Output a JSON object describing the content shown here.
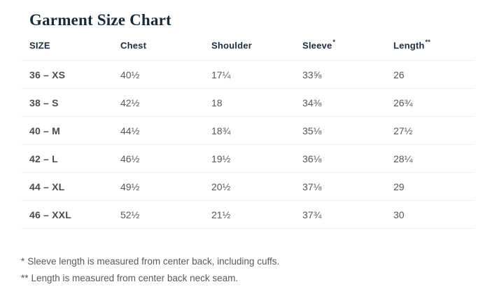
{
  "page": {
    "title": "Garment Size Chart"
  },
  "table": {
    "columns": [
      {
        "label": "SIZE",
        "sup": ""
      },
      {
        "label": "Chest",
        "sup": ""
      },
      {
        "label": "Shoulder",
        "sup": ""
      },
      {
        "label": "Sleeve",
        "sup": "*"
      },
      {
        "label": "Length",
        "sup": "**"
      }
    ],
    "rows": [
      {
        "size": "36 – XS",
        "chest": "40½",
        "shoulder": "17¼",
        "sleeve": "33⅝",
        "length": "26"
      },
      {
        "size": "38 – S",
        "chest": "42½",
        "shoulder": "18",
        "sleeve": "34⅜",
        "length": "26¾"
      },
      {
        "size": "40 – M",
        "chest": "44½",
        "shoulder": "18¾",
        "sleeve": "35⅛",
        "length": "27½"
      },
      {
        "size": "42 – L",
        "chest": "46½",
        "shoulder": "19½",
        "sleeve": "36⅛",
        "length": "28¼"
      },
      {
        "size": "44 – XL",
        "chest": "49½",
        "shoulder": "20½",
        "sleeve": "37⅛",
        "length": "29"
      },
      {
        "size": "46 – XXL",
        "chest": "52½",
        "shoulder": "21½",
        "sleeve": "37¾",
        "length": "30"
      }
    ]
  },
  "footnotes": [
    {
      "marker": "*",
      "text": "Sleeve length is measured from center back, including cuffs."
    },
    {
      "marker": "**",
      "text": "Length is measured from center back neck seam."
    }
  ],
  "colors": {
    "title": "#1c2b3a",
    "header_text": "#1e2c3e",
    "row_label": "#4c4c4c",
    "value_text": "#585858",
    "divider": "#efefef",
    "footnote_text": "#595959",
    "background": "#ffffff"
  },
  "chart_data": {
    "type": "table",
    "title": "Garment Size Chart",
    "columns": [
      "SIZE",
      "Chest",
      "Shoulder",
      "Sleeve*",
      "Length**"
    ],
    "rows": [
      [
        "36 – XS",
        "40½",
        "17¼",
        "33⅝",
        "26"
      ],
      [
        "38 – S",
        "42½",
        "18",
        "34⅜",
        "26¾"
      ],
      [
        "40 – M",
        "44½",
        "18¾",
        "35⅛",
        "27½"
      ],
      [
        "42 – L",
        "46½",
        "19½",
        "36⅛",
        "28¼"
      ],
      [
        "44 – XL",
        "49½",
        "20½",
        "37⅛",
        "29"
      ],
      [
        "46 – XXL",
        "52½",
        "21½",
        "37¾",
        "30"
      ]
    ]
  }
}
